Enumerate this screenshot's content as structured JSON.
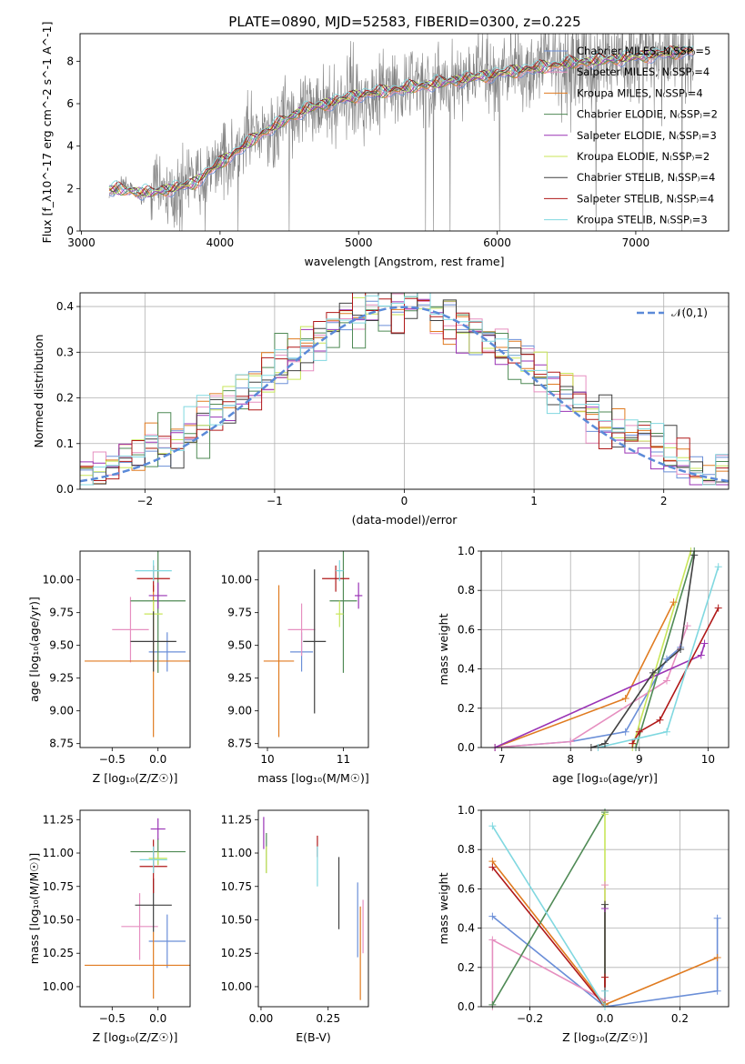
{
  "title": "PLATE=0890, MJD=52583, FIBERID=0300, z=0.225",
  "colors": {
    "chabrier_miles": "#6b8fd8",
    "salpeter_miles": "#e68fc0",
    "kroupa_miles": "#e07b20",
    "chabrier_elodie": "#4f8a55",
    "salpeter_elodie": "#9a33b5",
    "kroupa_elodie": "#c8e65a",
    "chabrier_stelib": "#404040",
    "salpeter_stelib": "#b01818",
    "kroupa_stelib": "#80d8e0",
    "data": "#808080",
    "normal": "#5b8ad8"
  },
  "chart_data": [
    {
      "id": "spectrum",
      "type": "line",
      "title": "PLATE=0890, MJD=52583, FIBERID=0300, z=0.225",
      "xlabel": "wavelength [Angstrom, rest frame]",
      "ylabel": "Flux [f_λ10^-17 erg cm^-2 s^-1 A^-1]",
      "xlim": [
        2990,
        7670
      ],
      "ylim": [
        0,
        9.3
      ],
      "xticks": [
        "3000",
        "4000",
        "5000",
        "6000",
        "7000"
      ],
      "yticks": [
        "0",
        "2",
        "4",
        "6",
        "8"
      ],
      "grid": false,
      "legend_position": "right",
      "legend": [
        "Chabrier MILES, N_SSP=5",
        "Salpeter MILES, N_SSP=4",
        "Kroupa MILES, N_SSP=4",
        "Chabrier ELODIE, N_SSP=2",
        "Salpeter ELODIE, N_SSP=3",
        "Kroupa ELODIE, N_SSP=2",
        "Chabrier STELIB, N_SSP=4",
        "Salpeter STELIB, N_SSP=4",
        "Kroupa STELIB, N_SSP=3"
      ],
      "continuum": {
        "x": [
          3200,
          3500,
          3800,
          4000,
          4300,
          4600,
          5000,
          5500,
          6000,
          6500,
          7000,
          7400
        ],
        "y": [
          2.0,
          1.8,
          2.2,
          3.2,
          4.6,
          5.7,
          6.4,
          6.9,
          7.4,
          7.9,
          8.2,
          8.5
        ]
      }
    },
    {
      "id": "residuals",
      "type": "line",
      "xlabel": "(data-model)/error",
      "ylabel": "Normed distribution",
      "xlim": [
        -2.5,
        2.5
      ],
      "ylim": [
        0,
        0.43
      ],
      "xticks": [
        "−2",
        "−1",
        "0",
        "1",
        "2"
      ],
      "yticks": [
        "0.0",
        "0.1",
        "0.2",
        "0.3",
        "0.4"
      ],
      "grid": true,
      "legend_position": "top-right",
      "legend": [
        "𝒩(0,1)"
      ]
    },
    {
      "id": "age_vs_Z",
      "type": "scatter",
      "xlabel": "Z [log₁₀(Z/Z☉)]",
      "ylabel": "age  [log₁₀(age/yr)]",
      "xlim": [
        -0.85,
        0.35
      ],
      "ylim": [
        8.72,
        10.22
      ],
      "xticks": [
        "−0.5",
        "0.0"
      ],
      "yticks": [
        "8.75",
        "9.00",
        "9.25",
        "9.50",
        "9.75",
        "10.00"
      ],
      "points": [
        {
          "m": "chabrier_miles",
          "x": 0.1,
          "xe": 0.2,
          "y": 9.45,
          "ye": 0.15
        },
        {
          "m": "salpeter_miles",
          "x": -0.3,
          "xe": 0.2,
          "y": 9.62,
          "ye": 0.25
        },
        {
          "m": "kroupa_miles",
          "x": -0.05,
          "xe": 0.75,
          "y": 9.38,
          "ye": 0.58
        },
        {
          "m": "chabrier_elodie",
          "x": 0.0,
          "xe": 0.3,
          "y": 9.84,
          "ye": 0.55
        },
        {
          "m": "salpeter_elodie",
          "x": 0.0,
          "xe": 0.1,
          "y": 9.88,
          "ye": 0.1
        },
        {
          "m": "kroupa_elodie",
          "x": -0.05,
          "xe": 0.1,
          "y": 9.74,
          "ye": 0.1
        },
        {
          "m": "chabrier_stelib",
          "x": -0.05,
          "xe": 0.25,
          "y": 9.53,
          "ye": 0.23
        },
        {
          "m": "salpeter_stelib",
          "x": -0.05,
          "xe": 0.18,
          "y": 10.01,
          "ye": 0.1
        },
        {
          "m": "kroupa_stelib",
          "x": -0.05,
          "xe": 0.2,
          "y": 10.07,
          "ye": 0.08
        }
      ]
    },
    {
      "id": "age_vs_mass",
      "type": "scatter",
      "xlabel": "mass [log₁₀(M/M☉)]",
      "xlim": [
        9.88,
        11.33
      ],
      "ylim": [
        8.72,
        10.22
      ],
      "xticks": [
        "10",
        "11"
      ],
      "yticks": [
        "8.75",
        "9.00",
        "9.25",
        "9.50",
        "9.75",
        "10.00"
      ],
      "points": [
        {
          "m": "chabrier_miles",
          "x": 10.45,
          "xe": 0.15,
          "y": 9.45,
          "ye": 0.15
        },
        {
          "m": "salpeter_miles",
          "x": 10.45,
          "xe": 0.18,
          "y": 9.62,
          "ye": 0.2
        },
        {
          "m": "kroupa_miles",
          "x": 10.15,
          "xe": 0.2,
          "y": 9.38,
          "ye": 0.58
        },
        {
          "m": "chabrier_elodie",
          "x": 11.0,
          "xe": 0.18,
          "y": 9.84,
          "ye": 0.55
        },
        {
          "m": "salpeter_elodie",
          "x": 11.2,
          "xe": 0.05,
          "y": 9.88,
          "ye": 0.1
        },
        {
          "m": "kroupa_elodie",
          "x": 10.95,
          "xe": 0.05,
          "y": 9.74,
          "ye": 0.1
        },
        {
          "m": "chabrier_stelib",
          "x": 10.62,
          "xe": 0.15,
          "y": 9.53,
          "ye": 0.55
        },
        {
          "m": "salpeter_stelib",
          "x": 10.9,
          "xe": 0.18,
          "y": 10.01,
          "ye": 0.1
        },
        {
          "m": "kroupa_stelib",
          "x": 10.95,
          "xe": 0.05,
          "y": 10.07,
          "ye": 0.08
        }
      ]
    },
    {
      "id": "weight_vs_age",
      "type": "line",
      "xlabel": "age  [log₁₀(age/yr)]",
      "ylabel": "mass weight",
      "xlim": [
        6.7,
        10.3
      ],
      "ylim": [
        0,
        1.0
      ],
      "xticks": [
        "7",
        "8",
        "9",
        "10"
      ],
      "yticks": [
        "0.0",
        "0.2",
        "0.4",
        "0.6",
        "0.8",
        "1.0"
      ],
      "grid": true,
      "series": [
        {
          "m": "chabrier_miles",
          "x": [
            6.9,
            8.0,
            8.8,
            9.4,
            9.6
          ],
          "y": [
            0.0,
            0.03,
            0.08,
            0.45,
            0.51
          ]
        },
        {
          "m": "salpeter_miles",
          "x": [
            6.9,
            8.0,
            9.4,
            9.7
          ],
          "y": [
            0.0,
            0.03,
            0.34,
            0.62
          ]
        },
        {
          "m": "kroupa_miles",
          "x": [
            6.9,
            8.8,
            9.5
          ],
          "y": [
            0.0,
            0.25,
            0.74
          ]
        },
        {
          "m": "chabrier_elodie",
          "x": [
            8.95,
            9.8
          ],
          "y": [
            0.0,
            1.0
          ]
        },
        {
          "m": "salpeter_elodie",
          "x": [
            6.9,
            9.9,
            9.95
          ],
          "y": [
            0.0,
            0.47,
            0.53
          ]
        },
        {
          "m": "kroupa_elodie",
          "x": [
            8.9,
            9.75
          ],
          "y": [
            0.0,
            1.0
          ]
        },
        {
          "m": "chabrier_stelib",
          "x": [
            8.3,
            8.5,
            9.2,
            9.6,
            9.8
          ],
          "y": [
            0.0,
            0.02,
            0.38,
            0.5,
            0.98
          ]
        },
        {
          "m": "salpeter_stelib",
          "x": [
            8.9,
            9.0,
            9.3,
            10.15
          ],
          "y": [
            0.02,
            0.08,
            0.14,
            0.71
          ]
        },
        {
          "m": "kroupa_stelib",
          "x": [
            8.4,
            9.4,
            10.15
          ],
          "y": [
            0.0,
            0.08,
            0.92
          ]
        }
      ]
    },
    {
      "id": "mass_vs_Z",
      "type": "scatter",
      "xlabel": "Z [log₁₀(Z/Z☉)]",
      "ylabel": "mass [log₁₀(M/M☉)]",
      "xlim": [
        -0.85,
        0.35
      ],
      "ylim": [
        9.85,
        11.32
      ],
      "xticks": [
        "−0.5",
        "0.0"
      ],
      "yticks": [
        "10.00",
        "10.25",
        "10.50",
        "10.75",
        "11.00",
        "11.25"
      ],
      "points": [
        {
          "m": "chabrier_miles",
          "x": 0.1,
          "xe": 0.2,
          "y": 10.34,
          "ye": 0.2
        },
        {
          "m": "salpeter_miles",
          "x": -0.2,
          "xe": 0.2,
          "y": 10.45,
          "ye": 0.25
        },
        {
          "m": "kroupa_miles",
          "x": -0.05,
          "xe": 0.75,
          "y": 10.16,
          "ye": 0.25
        },
        {
          "m": "chabrier_elodie",
          "x": 0.0,
          "xe": 0.3,
          "y": 11.01,
          "ye": 0.1
        },
        {
          "m": "salpeter_elodie",
          "x": 0.0,
          "xe": 0.08,
          "y": 11.18,
          "ye": 0.08
        },
        {
          "m": "kroupa_elodie",
          "x": 0.0,
          "xe": 0.1,
          "y": 10.96,
          "ye": 0.05
        },
        {
          "m": "chabrier_stelib",
          "x": -0.05,
          "xe": 0.2,
          "y": 10.61,
          "ye": 0.2
        },
        {
          "m": "salpeter_stelib",
          "x": -0.05,
          "xe": 0.15,
          "y": 10.9,
          "ye": 0.2
        },
        {
          "m": "kroupa_stelib",
          "x": -0.05,
          "xe": 0.15,
          "y": 10.95,
          "ye": 0.1
        }
      ]
    },
    {
      "id": "mass_vs_ebv",
      "type": "scatter",
      "xlabel": "E(B-V)",
      "xlim": [
        -0.01,
        0.4
      ],
      "ylim": [
        9.85,
        11.32
      ],
      "xticks": [
        "0.00",
        "0.25"
      ],
      "yticks": [
        "10.00",
        "10.25",
        "10.50",
        "10.75",
        "11.00",
        "11.25"
      ],
      "points": [
        {
          "m": "chabrier_miles",
          "x": 0.36,
          "xe": 0,
          "y": 10.5,
          "ye": 0.28
        },
        {
          "m": "salpeter_miles",
          "x": 0.38,
          "xe": 0,
          "y": 10.45,
          "ye": 0.2
        },
        {
          "m": "kroupa_miles",
          "x": 0.37,
          "xe": 0,
          "y": 10.25,
          "ye": 0.35
        },
        {
          "m": "chabrier_elodie",
          "x": 0.02,
          "xe": 0,
          "y": 11.0,
          "ye": 0.15
        },
        {
          "m": "salpeter_elodie",
          "x": 0.01,
          "xe": 0,
          "y": 11.15,
          "ye": 0.12
        },
        {
          "m": "kroupa_elodie",
          "x": 0.02,
          "xe": 0,
          "y": 10.95,
          "ye": 0.1
        },
        {
          "m": "chabrier_stelib",
          "x": 0.29,
          "xe": 0,
          "y": 10.7,
          "ye": 0.27
        },
        {
          "m": "salpeter_stelib",
          "x": 0.21,
          "xe": 0,
          "y": 11.05,
          "ye": 0.08
        },
        {
          "m": "kroupa_stelib",
          "x": 0.21,
          "xe": 0,
          "y": 10.9,
          "ye": 0.15
        }
      ]
    },
    {
      "id": "weight_vs_Z",
      "type": "line",
      "xlabel": "Z [log₁₀(Z/Z☉)]",
      "ylabel": "mass weight",
      "xlim": [
        -0.33,
        0.33
      ],
      "ylim": [
        0,
        1.0
      ],
      "xticks": [
        "−0.2",
        "0.0",
        "0.2"
      ],
      "yticks": [
        "0.0",
        "0.2",
        "0.4",
        "0.6",
        "0.8",
        "1.0"
      ],
      "grid": true,
      "series": [
        {
          "m": "chabrier_miles",
          "x": [
            -0.3,
            0.0,
            0.3,
            0.3
          ],
          "y": [
            0.46,
            0.0,
            0.08,
            0.45
          ]
        },
        {
          "m": "salpeter_miles",
          "x": [
            -0.3,
            -0.3,
            0.0,
            0.0
          ],
          "y": [
            0.0,
            0.34,
            0.03,
            0.62
          ]
        },
        {
          "m": "kroupa_miles",
          "x": [
            -0.3,
            0.0,
            0.3
          ],
          "y": [
            0.74,
            0.01,
            0.25
          ]
        },
        {
          "m": "chabrier_elodie",
          "x": [
            -0.3,
            0.0
          ],
          "y": [
            0.01,
            0.99
          ]
        },
        {
          "m": "salpeter_elodie",
          "x": [
            0.0,
            0.0
          ],
          "y": [
            0.0,
            0.5
          ]
        },
        {
          "m": "kroupa_elodie",
          "x": [
            0.0,
            0.0
          ],
          "y": [
            0.0,
            0.98
          ]
        },
        {
          "m": "chabrier_stelib",
          "x": [
            0.0,
            0.0
          ],
          "y": [
            0.0,
            0.52
          ]
        },
        {
          "m": "salpeter_stelib",
          "x": [
            -0.3,
            0.0,
            0.0
          ],
          "y": [
            0.71,
            0.0,
            0.15
          ]
        },
        {
          "m": "kroupa_stelib",
          "x": [
            -0.3,
            0.0,
            0.0
          ],
          "y": [
            0.92,
            0.0,
            0.08
          ]
        }
      ]
    }
  ]
}
